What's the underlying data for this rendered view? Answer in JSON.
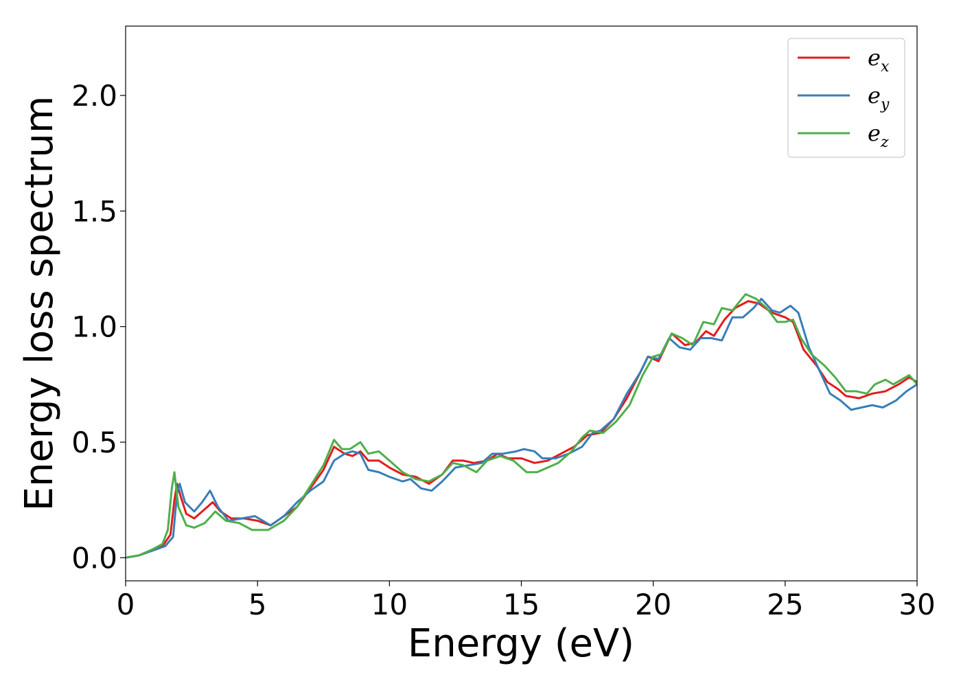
{
  "chart_data": {
    "type": "line",
    "xlabel": "Energy (eV)",
    "ylabel": "Energy loss spectrum",
    "xlim": [
      0,
      30
    ],
    "ylim": [
      -0.1,
      2.3
    ],
    "x_ticks": [
      0,
      5,
      10,
      15,
      20,
      25,
      30
    ],
    "x_tick_labels": [
      "0",
      "5",
      "10",
      "15",
      "20",
      "25",
      "30"
    ],
    "y_ticks": [
      0.0,
      0.5,
      1.0,
      1.5,
      2.0
    ],
    "y_tick_labels": [
      "0.0",
      "0.5",
      "1.0",
      "1.5",
      "2.0"
    ],
    "grid": false,
    "legend_position": "top-right",
    "series": [
      {
        "name": "e",
        "subscript": "x",
        "color": "#e41a1c",
        "points": [
          [
            0,
            0
          ],
          [
            0.5,
            0.01
          ],
          [
            1.0,
            0.03
          ],
          [
            1.4,
            0.05
          ],
          [
            1.7,
            0.1
          ],
          [
            1.85,
            0.25
          ],
          [
            1.95,
            0.32
          ],
          [
            2.1,
            0.26
          ],
          [
            2.3,
            0.19
          ],
          [
            2.6,
            0.17
          ],
          [
            2.9,
            0.2
          ],
          [
            3.3,
            0.24
          ],
          [
            3.6,
            0.2
          ],
          [
            4.0,
            0.17
          ],
          [
            4.5,
            0.17
          ],
          [
            5.0,
            0.16
          ],
          [
            5.5,
            0.14
          ],
          [
            6.0,
            0.18
          ],
          [
            6.5,
            0.22
          ],
          [
            7.0,
            0.3
          ],
          [
            7.5,
            0.38
          ],
          [
            7.9,
            0.48
          ],
          [
            8.3,
            0.45
          ],
          [
            8.6,
            0.44
          ],
          [
            8.9,
            0.46
          ],
          [
            9.2,
            0.42
          ],
          [
            9.6,
            0.42
          ],
          [
            10.0,
            0.39
          ],
          [
            10.5,
            0.36
          ],
          [
            11.0,
            0.35
          ],
          [
            11.5,
            0.32
          ],
          [
            12.0,
            0.36
          ],
          [
            12.4,
            0.42
          ],
          [
            12.8,
            0.42
          ],
          [
            13.2,
            0.41
          ],
          [
            13.7,
            0.42
          ],
          [
            14.1,
            0.45
          ],
          [
            14.5,
            0.43
          ],
          [
            15.0,
            0.43
          ],
          [
            15.5,
            0.41
          ],
          [
            16.0,
            0.42
          ],
          [
            16.5,
            0.45
          ],
          [
            17.0,
            0.48
          ],
          [
            17.5,
            0.53
          ],
          [
            18.0,
            0.54
          ],
          [
            18.5,
            0.6
          ],
          [
            19.0,
            0.69
          ],
          [
            19.5,
            0.8
          ],
          [
            19.8,
            0.87
          ],
          [
            20.2,
            0.85
          ],
          [
            20.7,
            0.97
          ],
          [
            21.2,
            0.92
          ],
          [
            21.6,
            0.93
          ],
          [
            22.0,
            0.98
          ],
          [
            22.3,
            0.96
          ],
          [
            22.7,
            1.03
          ],
          [
            23.1,
            1.08
          ],
          [
            23.6,
            1.11
          ],
          [
            24.0,
            1.1
          ],
          [
            24.5,
            1.06
          ],
          [
            25.0,
            1.04
          ],
          [
            25.3,
            1.02
          ],
          [
            25.7,
            0.9
          ],
          [
            26.2,
            0.83
          ],
          [
            26.6,
            0.76
          ],
          [
            27.0,
            0.73
          ],
          [
            27.3,
            0.7
          ],
          [
            27.8,
            0.69
          ],
          [
            28.3,
            0.71
          ],
          [
            28.8,
            0.72
          ],
          [
            29.3,
            0.75
          ],
          [
            29.7,
            0.78
          ],
          [
            30.0,
            0.76
          ]
        ]
      },
      {
        "name": "e",
        "subscript": "y",
        "color": "#377eb8",
        "points": [
          [
            0,
            0
          ],
          [
            0.5,
            0.01
          ],
          [
            1.0,
            0.03
          ],
          [
            1.5,
            0.05
          ],
          [
            1.8,
            0.09
          ],
          [
            1.95,
            0.28
          ],
          [
            2.05,
            0.32
          ],
          [
            2.25,
            0.24
          ],
          [
            2.6,
            0.2
          ],
          [
            2.9,
            0.24
          ],
          [
            3.2,
            0.29
          ],
          [
            3.5,
            0.22
          ],
          [
            3.9,
            0.16
          ],
          [
            4.4,
            0.17
          ],
          [
            4.9,
            0.18
          ],
          [
            5.5,
            0.14
          ],
          [
            6.0,
            0.18
          ],
          [
            6.5,
            0.24
          ],
          [
            7.0,
            0.29
          ],
          [
            7.5,
            0.33
          ],
          [
            7.9,
            0.42
          ],
          [
            8.3,
            0.45
          ],
          [
            8.6,
            0.46
          ],
          [
            8.9,
            0.45
          ],
          [
            9.2,
            0.38
          ],
          [
            9.6,
            0.37
          ],
          [
            10.0,
            0.35
          ],
          [
            10.5,
            0.33
          ],
          [
            10.8,
            0.34
          ],
          [
            11.2,
            0.3
          ],
          [
            11.6,
            0.29
          ],
          [
            12.0,
            0.33
          ],
          [
            12.5,
            0.39
          ],
          [
            13.0,
            0.4
          ],
          [
            13.5,
            0.41
          ],
          [
            13.9,
            0.45
          ],
          [
            14.3,
            0.45
          ],
          [
            14.8,
            0.46
          ],
          [
            15.1,
            0.47
          ],
          [
            15.5,
            0.46
          ],
          [
            15.8,
            0.43
          ],
          [
            16.3,
            0.43
          ],
          [
            16.8,
            0.45
          ],
          [
            17.3,
            0.48
          ],
          [
            17.7,
            0.54
          ],
          [
            18.0,
            0.55
          ],
          [
            18.5,
            0.6
          ],
          [
            19.0,
            0.71
          ],
          [
            19.5,
            0.8
          ],
          [
            19.8,
            0.87
          ],
          [
            20.2,
            0.86
          ],
          [
            20.6,
            0.95
          ],
          [
            21.0,
            0.91
          ],
          [
            21.4,
            0.9
          ],
          [
            21.8,
            0.95
          ],
          [
            22.2,
            0.95
          ],
          [
            22.6,
            0.94
          ],
          [
            23.0,
            1.04
          ],
          [
            23.4,
            1.04
          ],
          [
            23.8,
            1.08
          ],
          [
            24.1,
            1.12
          ],
          [
            24.5,
            1.07
          ],
          [
            24.8,
            1.06
          ],
          [
            25.2,
            1.09
          ],
          [
            25.5,
            1.06
          ],
          [
            25.9,
            0.91
          ],
          [
            26.3,
            0.81
          ],
          [
            26.7,
            0.71
          ],
          [
            27.1,
            0.68
          ],
          [
            27.5,
            0.64
          ],
          [
            27.9,
            0.65
          ],
          [
            28.3,
            0.66
          ],
          [
            28.7,
            0.65
          ],
          [
            29.2,
            0.68
          ],
          [
            29.6,
            0.72
          ],
          [
            30.0,
            0.75
          ]
        ]
      },
      {
        "name": "e",
        "subscript": "z",
        "color": "#4daf4a",
        "points": [
          [
            0,
            0
          ],
          [
            0.5,
            0.01
          ],
          [
            1.0,
            0.035
          ],
          [
            1.4,
            0.06
          ],
          [
            1.6,
            0.12
          ],
          [
            1.75,
            0.3
          ],
          [
            1.85,
            0.37
          ],
          [
            2.0,
            0.22
          ],
          [
            2.3,
            0.14
          ],
          [
            2.6,
            0.13
          ],
          [
            3.0,
            0.15
          ],
          [
            3.4,
            0.2
          ],
          [
            3.8,
            0.16
          ],
          [
            4.3,
            0.15
          ],
          [
            4.8,
            0.12
          ],
          [
            5.4,
            0.12
          ],
          [
            6.0,
            0.16
          ],
          [
            6.5,
            0.22
          ],
          [
            7.0,
            0.31
          ],
          [
            7.5,
            0.4
          ],
          [
            7.9,
            0.51
          ],
          [
            8.2,
            0.47
          ],
          [
            8.5,
            0.47
          ],
          [
            8.9,
            0.5
          ],
          [
            9.2,
            0.45
          ],
          [
            9.6,
            0.46
          ],
          [
            10.0,
            0.42
          ],
          [
            10.5,
            0.37
          ],
          [
            11.0,
            0.34
          ],
          [
            11.5,
            0.33
          ],
          [
            12.0,
            0.36
          ],
          [
            12.4,
            0.41
          ],
          [
            12.8,
            0.4
          ],
          [
            13.3,
            0.37
          ],
          [
            13.7,
            0.42
          ],
          [
            14.2,
            0.44
          ],
          [
            14.7,
            0.42
          ],
          [
            15.2,
            0.37
          ],
          [
            15.6,
            0.37
          ],
          [
            16.0,
            0.39
          ],
          [
            16.4,
            0.41
          ],
          [
            16.9,
            0.46
          ],
          [
            17.3,
            0.52
          ],
          [
            17.6,
            0.55
          ],
          [
            18.1,
            0.54
          ],
          [
            18.6,
            0.59
          ],
          [
            19.1,
            0.66
          ],
          [
            19.6,
            0.79
          ],
          [
            20.0,
            0.87
          ],
          [
            20.3,
            0.88
          ],
          [
            20.7,
            0.97
          ],
          [
            21.1,
            0.95
          ],
          [
            21.5,
            0.92
          ],
          [
            21.9,
            1.02
          ],
          [
            22.3,
            1.01
          ],
          [
            22.6,
            1.08
          ],
          [
            23.0,
            1.07
          ],
          [
            23.5,
            1.14
          ],
          [
            23.9,
            1.12
          ],
          [
            24.3,
            1.08
          ],
          [
            24.7,
            1.02
          ],
          [
            25.0,
            1.02
          ],
          [
            25.3,
            1.03
          ],
          [
            25.6,
            0.95
          ],
          [
            26.0,
            0.88
          ],
          [
            26.5,
            0.83
          ],
          [
            26.9,
            0.78
          ],
          [
            27.3,
            0.72
          ],
          [
            27.7,
            0.72
          ],
          [
            28.1,
            0.71
          ],
          [
            28.4,
            0.75
          ],
          [
            28.8,
            0.77
          ],
          [
            29.1,
            0.75
          ],
          [
            29.4,
            0.77
          ],
          [
            29.7,
            0.79
          ],
          [
            30.0,
            0.75
          ]
        ]
      }
    ]
  }
}
